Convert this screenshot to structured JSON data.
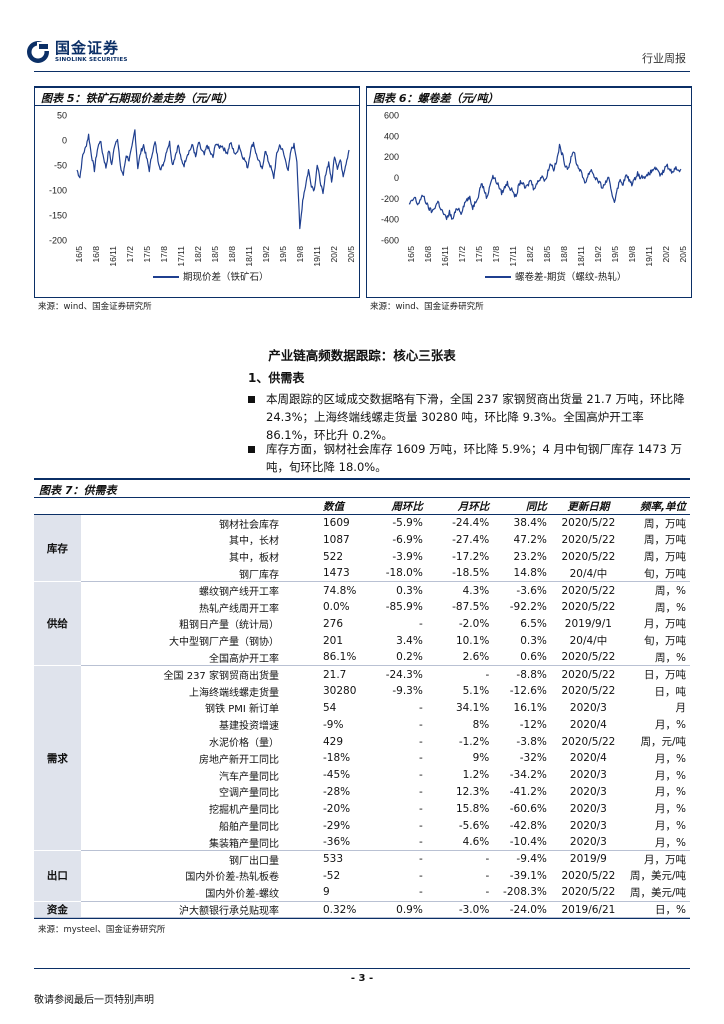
{
  "header": {
    "logo_cn": "国金证券",
    "logo_en": "SINOLINK SECURITIES",
    "category": "行业周报"
  },
  "figure5": {
    "title": "图表 5：铁矿石期现价差走势（元/吨）",
    "source": "来源：wind、国金证券研究所"
  },
  "figure6": {
    "title": "图表 6：螺卷差（元/吨）",
    "source": "来源：wind、国金证券研究所"
  },
  "chart_data": [
    {
      "type": "line",
      "yticks": [
        "50",
        "0",
        "-50",
        "-100",
        "-150",
        "-200"
      ],
      "ylim": [
        -200,
        50
      ],
      "xticks": [
        "16/5",
        "16/8",
        "16/11",
        "17/2",
        "17/5",
        "17/8",
        "17/11",
        "18/2",
        "18/5",
        "18/8",
        "18/11",
        "19/2",
        "19/5",
        "19/8",
        "19/11",
        "20/2",
        "20/5"
      ],
      "series": [
        {
          "name": "期现价差（铁矿石）",
          "color": "#1f3f8f",
          "values": [
            -60,
            -75,
            -30,
            -15,
            10,
            -30,
            -60,
            -20,
            0,
            -30,
            -55,
            -20,
            -50,
            -10,
            5,
            -55,
            -70,
            -30,
            -40,
            -15,
            20,
            -55,
            -25,
            -10,
            -35,
            -60,
            -25,
            -5,
            -40,
            -60,
            -45,
            -20,
            -5,
            -50,
            -30,
            -10,
            -40,
            -50,
            -30,
            -20,
            -10,
            -35,
            -5,
            -20,
            -30,
            -10,
            -25,
            -35,
            -5,
            -15,
            -10,
            -20,
            -25,
            -5,
            -20,
            -30,
            -10,
            -30,
            -40,
            -55,
            -20,
            -5,
            -30,
            -45,
            -60,
            -20,
            -40,
            -55,
            -75,
            -30,
            -10,
            -20,
            -40,
            -60,
            -20,
            -10,
            -40,
            -180,
            -120,
            -90,
            -60,
            -90,
            -100,
            -50,
            -80,
            -110,
            -65,
            -45,
            -85,
            -30,
            -55,
            -40,
            -70,
            -45,
            -20
          ]
        }
      ]
    },
    {
      "type": "line",
      "yticks": [
        "600",
        "400",
        "200",
        "0",
        "-200",
        "-400",
        "-600"
      ],
      "ylim": [
        -600,
        600
      ],
      "xticks": [
        "16/5",
        "16/8",
        "16/11",
        "17/2",
        "17/5",
        "17/8",
        "17/11",
        "18/2",
        "18/5",
        "18/8",
        "18/11",
        "19/2",
        "19/5",
        "19/8",
        "19/11",
        "20/2",
        "20/5"
      ],
      "series": [
        {
          "name": "螺卷差-期货（螺纹-热轧）",
          "color": "#1f3f8f",
          "values": [
            -260,
            -230,
            -190,
            -260,
            -210,
            -170,
            -250,
            -300,
            -330,
            -280,
            -230,
            -300,
            -350,
            -400,
            -330,
            -410,
            -330,
            -290,
            -340,
            -260,
            -210,
            -200,
            -290,
            -230,
            -170,
            -50,
            -120,
            -200,
            -60,
            10,
            -30,
            -80,
            -150,
            -100,
            -50,
            -110,
            -130,
            -200,
            -60,
            -40,
            -100,
            -80,
            -20,
            -100,
            -70,
            -20,
            20,
            -40,
            60,
            140,
            80,
            150,
            300,
            220,
            120,
            90,
            180,
            260,
            120,
            80,
            10,
            -50,
            30,
            80,
            10,
            -20,
            -60,
            -100,
            -40,
            -10,
            -150,
            -230,
            -100,
            -30,
            -60,
            20,
            -20,
            -60,
            -20,
            50,
            -10,
            20,
            0,
            40,
            60,
            100,
            50,
            20,
            60,
            120,
            80,
            50,
            100,
            60,
            80
          ]
        }
      ]
    }
  ],
  "section": {
    "title": "产业链高频数据跟踪：核心三张表",
    "subtitle": "1、供需表",
    "bullet1": "本周跟踪的区域成交数据略有下滑，全国 237 家钢贸商出货量 21.7 万吨，环比降 24.3%；上海终端线螺走货量 30280 吨，环比降 9.3%。全国高炉开工率 86.1%，环比升 0.2%。",
    "bullet2": "库存方面，钢材社会库存 1609 万吨，环比降 5.9%；4 月中旬钢厂库存 1473 万吨，旬环比降 18.0%。"
  },
  "table": {
    "title": "图表 7：供需表",
    "headers": {
      "value": "数值",
      "wow": "周环比",
      "mom": "月环比",
      "yoy": "同比",
      "date": "更新日期",
      "freq": "频率,单位"
    },
    "groups": {
      "inventory": "库存",
      "supply": "供给",
      "demand": "需求",
      "export": "出口",
      "funds": "资金"
    },
    "rows": [
      [
        "钢材社会库存",
        "1609",
        "-5.9%",
        "-24.4%",
        "38.4%",
        "2020/5/22",
        "周，万吨"
      ],
      [
        "其中，长材",
        "1087",
        "-6.9%",
        "-27.4%",
        "47.2%",
        "2020/5/22",
        "周，万吨"
      ],
      [
        "其中，板材",
        "522",
        "-3.9%",
        "-17.2%",
        "23.2%",
        "2020/5/22",
        "周，万吨"
      ],
      [
        "钢厂库存",
        "1473",
        "-18.0%",
        "-18.5%",
        "14.8%",
        "20/4/中",
        "旬，万吨"
      ],
      [
        "螺纹钢产线开工率",
        "74.8%",
        "0.3%",
        "4.3%",
        "-3.6%",
        "2020/5/22",
        "周，%"
      ],
      [
        "热轧产线周开工率",
        "0.0%",
        "-85.9%",
        "-87.5%",
        "-92.2%",
        "2020/5/22",
        "周，%"
      ],
      [
        "粗钢日产量（统计局）",
        "276",
        "-",
        "-2.0%",
        "6.5%",
        "2019/9/1",
        "月，万吨"
      ],
      [
        "大中型钢厂产量（钢协）",
        "201",
        "3.4%",
        "10.1%",
        "0.3%",
        "20/4/中",
        "旬，万吨"
      ],
      [
        "全国高炉开工率",
        "86.1%",
        "0.2%",
        "2.6%",
        "0.6%",
        "2020/5/22",
        "周，%"
      ],
      [
        "全国 237 家钢贸商出货量",
        "21.7",
        "-24.3%",
        "-",
        "-8.8%",
        "2020/5/22",
        "日，万吨"
      ],
      [
        "上海终端线螺走货量",
        "30280",
        "-9.3%",
        "5.1%",
        "-12.6%",
        "2020/5/22",
        "日，吨"
      ],
      [
        "钢铁 PMI 新订单",
        "54",
        "-",
        "34.1%",
        "16.1%",
        "2020/3",
        "月"
      ],
      [
        "基建投资增速",
        "-9%",
        "-",
        "8%",
        "-12%",
        "2020/4",
        "月，%"
      ],
      [
        "水泥价格（量）",
        "429",
        "-",
        "-1.2%",
        "-3.8%",
        "2020/5/22",
        "周，元/吨"
      ],
      [
        "房地产新开工同比",
        "-18%",
        "-",
        "9%",
        "-32%",
        "2020/4",
        "月，%"
      ],
      [
        "汽车产量同比",
        "-45%",
        "-",
        "1.2%",
        "-34.2%",
        "2020/3",
        "月，%"
      ],
      [
        "空调产量同比",
        "-28%",
        "-",
        "12.3%",
        "-41.2%",
        "2020/3",
        "月，%"
      ],
      [
        "挖掘机产量同比",
        "-20%",
        "-",
        "15.8%",
        "-60.6%",
        "2020/3",
        "月，%"
      ],
      [
        "船舶产量同比",
        "-29%",
        "-",
        "-5.6%",
        "-42.8%",
        "2020/3",
        "月，%"
      ],
      [
        "集装箱产量同比",
        "-36%",
        "-",
        "4.6%",
        "-10.4%",
        "2020/3",
        "月，%"
      ],
      [
        "钢厂出口量",
        "533",
        "-",
        "-",
        "-9.4%",
        "2019/9",
        "月，万吨"
      ],
      [
        "国内外价差-热轧板卷",
        "-52",
        "-",
        "-",
        "-39.1%",
        "2020/5/22",
        "周，美元/吨"
      ],
      [
        "国内外价差-螺纹",
        "9",
        "-",
        "-",
        "-208.3%",
        "2020/5/22",
        "周，美元/吨"
      ],
      [
        "沪大额银行承兑贴现率",
        "0.32%",
        "0.9%",
        "-3.0%",
        "-24.0%",
        "2019/6/21",
        "日，%"
      ]
    ],
    "source": "来源：mysteel、国金证券研究所"
  },
  "footer": {
    "page": "- 3 -",
    "note": "敬请参阅最后一页特别声明"
  }
}
